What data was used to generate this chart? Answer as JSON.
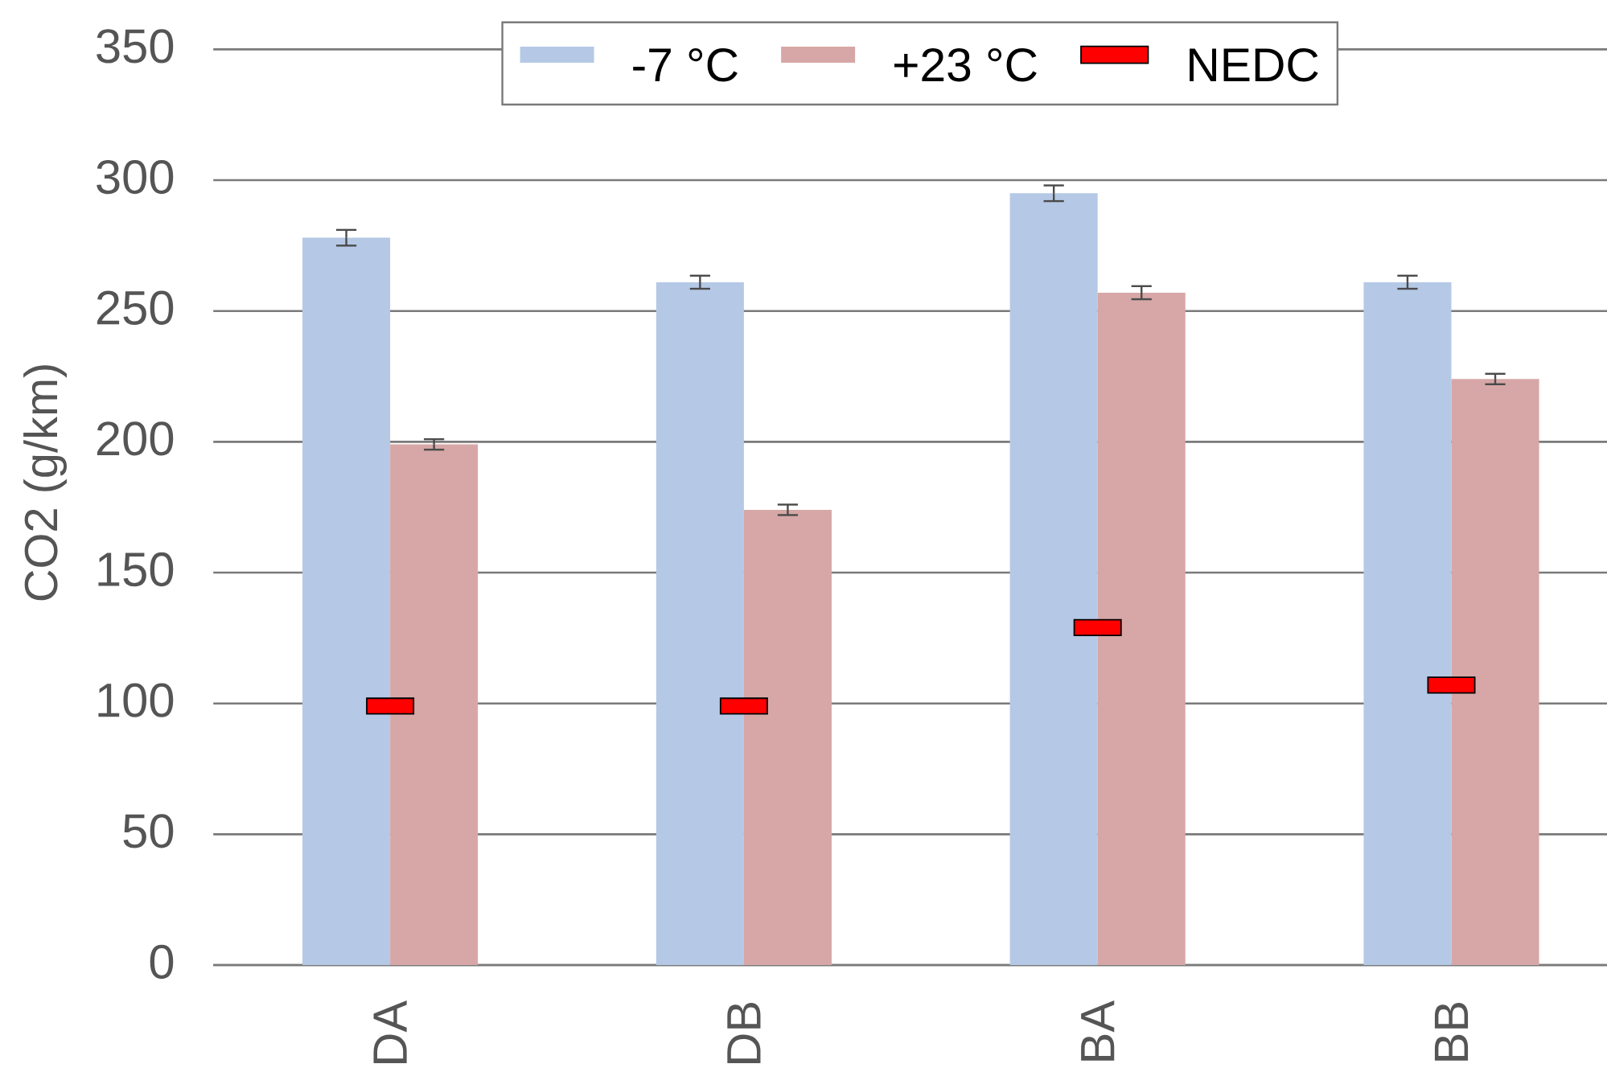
{
  "chart_data": {
    "type": "bar",
    "ylabel": "CO2 (g/km)",
    "categories": [
      "DA",
      "DB",
      "BA",
      "BB"
    ],
    "series": [
      {
        "name": "-7 °C",
        "color": "#b5c9e6",
        "values": [
          278,
          261,
          295,
          261
        ],
        "errors": [
          3,
          2.5,
          3,
          2.5
        ]
      },
      {
        "name": "+23 °C",
        "color": "#d7a7a7",
        "values": [
          199,
          174,
          257,
          224
        ],
        "errors": [
          2,
          2,
          2.5,
          2
        ]
      },
      {
        "name": "NEDC",
        "type": "scatter",
        "color": "#ff0000",
        "x": [
          "DA",
          "DB",
          "BA",
          "BB"
        ],
        "values": [
          99,
          99,
          129,
          107
        ],
        "marker": "square"
      }
    ],
    "ylim": [
      0,
      350
    ],
    "yticks": [
      0,
      50,
      100,
      150,
      200,
      250,
      300,
      350
    ],
    "grid": "y",
    "legend": "top"
  }
}
